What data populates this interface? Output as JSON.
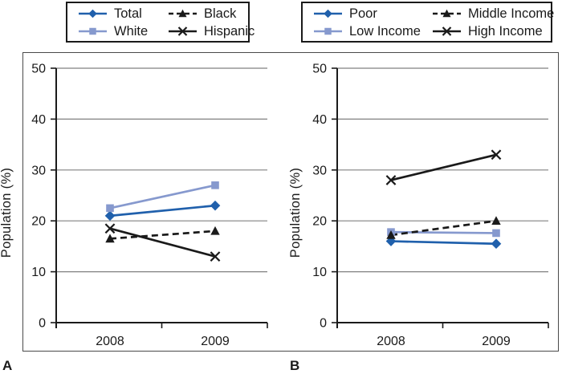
{
  "figure": {
    "panel_a_letter": "A",
    "panel_b_letter": "B"
  },
  "colors": {
    "accent_blue": "#2060ac",
    "light_blue": "#8699ce",
    "black_line": "#1a1a1a",
    "gridline": "#808080",
    "frame_border": "#4a4a4a"
  },
  "chart_data": [
    {
      "type": "line",
      "panel": "A",
      "ylabel": "Population (%)",
      "categories": [
        "2008",
        "2009"
      ],
      "ylim": [
        0,
        50
      ],
      "yticks": [
        0,
        10,
        20,
        30,
        40,
        50
      ],
      "grid": true,
      "legend_position": "top",
      "series": [
        {
          "name": "Total",
          "marker": "diamond",
          "line": "solid",
          "color": "#2060ac",
          "values": [
            21,
            23
          ]
        },
        {
          "name": "White",
          "marker": "square",
          "line": "solid",
          "color": "#8699ce",
          "values": [
            22.5,
            27
          ]
        },
        {
          "name": "Black",
          "marker": "triangle",
          "line": "dashed",
          "color": "#1a1a1a",
          "values": [
            16.5,
            18
          ]
        },
        {
          "name": "Hispanic",
          "marker": "x",
          "line": "solid",
          "color": "#1a1a1a",
          "values": [
            18.5,
            13
          ]
        }
      ]
    },
    {
      "type": "line",
      "panel": "B",
      "ylabel": "Population (%)",
      "categories": [
        "2008",
        "2009"
      ],
      "ylim": [
        0,
        50
      ],
      "yticks": [
        0,
        10,
        20,
        30,
        40,
        50
      ],
      "grid": true,
      "legend_position": "top",
      "series": [
        {
          "name": "Poor",
          "marker": "diamond",
          "line": "solid",
          "color": "#2060ac",
          "values": [
            16,
            15.5
          ]
        },
        {
          "name": "Low Income",
          "marker": "square",
          "line": "solid",
          "color": "#8699ce",
          "values": [
            17.8,
            17.6
          ]
        },
        {
          "name": "Middle Income",
          "marker": "triangle",
          "line": "dashed",
          "color": "#1a1a1a",
          "values": [
            17.2,
            20
          ]
        },
        {
          "name": "High Income",
          "marker": "x",
          "line": "solid",
          "color": "#1a1a1a",
          "values": [
            28,
            33
          ]
        }
      ]
    }
  ]
}
